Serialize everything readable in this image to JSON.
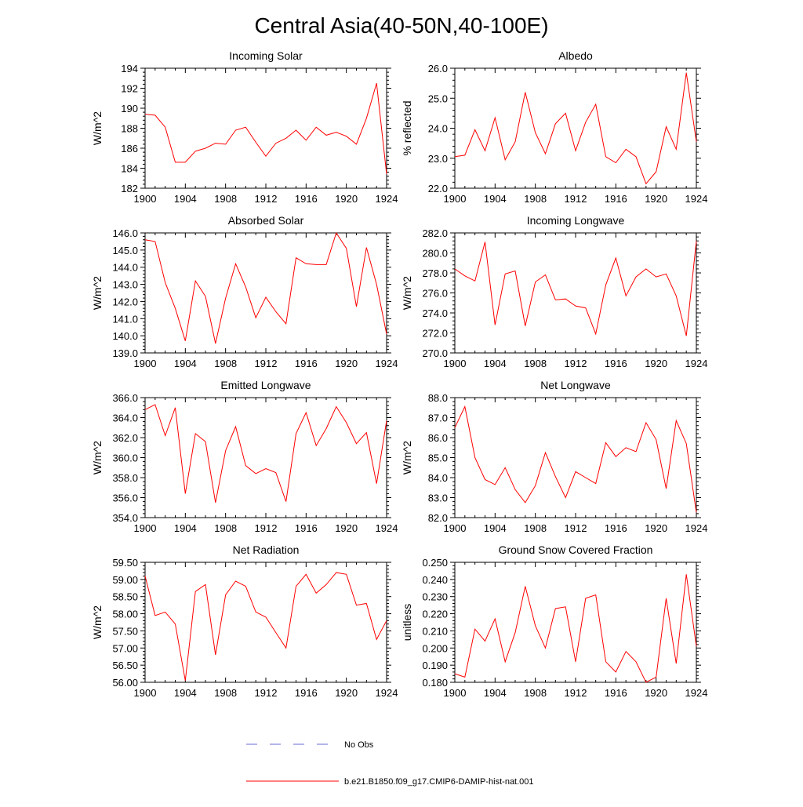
{
  "title": "Central Asia(40-50N,40-100E)",
  "colors": {
    "series": "#ff0000",
    "obs": "#6b6bd6",
    "axis": "#000000"
  },
  "legend": {
    "obs_label": "No Obs",
    "model_label": "b.e21.B1850.f09_g17.CMIP6-DAMIP-hist-nat.001"
  },
  "chart_data": [
    {
      "type": "line",
      "title": "Incoming Solar",
      "ylabel": "W/m^2",
      "xlim": [
        1900,
        1924
      ],
      "ylim": [
        182,
        194
      ],
      "xticks": [
        "1900",
        "1904",
        "1908",
        "1912",
        "1916",
        "1920",
        "1924"
      ],
      "yticks": [
        "182",
        "184",
        "186",
        "188",
        "190",
        "192",
        "194"
      ],
      "series": [
        {
          "x": [
            1900,
            1901,
            1902,
            1903,
            1904,
            1905,
            1906,
            1907,
            1908,
            1909,
            1910,
            1911,
            1912,
            1913,
            1914,
            1915,
            1916,
            1917,
            1918,
            1919,
            1920,
            1921,
            1922,
            1923,
            1924
          ],
          "values": [
            189.4,
            189.3,
            188.1,
            184.6,
            184.6,
            185.7,
            186.0,
            186.5,
            186.4,
            187.8,
            188.1,
            186.6,
            185.2,
            186.5,
            187.0,
            187.8,
            186.8,
            188.1,
            187.3,
            187.6,
            187.2,
            186.4,
            189.0,
            192.5,
            183.4
          ]
        }
      ]
    },
    {
      "type": "line",
      "title": "Albedo",
      "ylabel": "% reflected",
      "xlim": [
        1900,
        1924
      ],
      "ylim": [
        22.0,
        26.0
      ],
      "xticks": [
        "1900",
        "1904",
        "1908",
        "1912",
        "1916",
        "1920",
        "1924"
      ],
      "yticks": [
        "22.0",
        "23.0",
        "24.0",
        "25.0",
        "26.0"
      ],
      "series": [
        {
          "x": [
            1900,
            1901,
            1902,
            1903,
            1904,
            1905,
            1906,
            1907,
            1908,
            1909,
            1910,
            1911,
            1912,
            1913,
            1914,
            1915,
            1916,
            1917,
            1918,
            1919,
            1920,
            1921,
            1922,
            1923,
            1924
          ],
          "values": [
            23.05,
            23.1,
            23.95,
            23.25,
            24.35,
            22.95,
            23.55,
            25.2,
            23.85,
            23.15,
            24.15,
            24.5,
            23.25,
            24.2,
            24.8,
            23.05,
            22.85,
            23.3,
            23.05,
            22.15,
            22.55,
            24.05,
            23.3,
            25.85,
            23.55
          ]
        }
      ]
    },
    {
      "type": "line",
      "title": "Absorbed Solar",
      "ylabel": "W/m^2",
      "xlim": [
        1900,
        1924
      ],
      "ylim": [
        139.0,
        146.0
      ],
      "xticks": [
        "1900",
        "1904",
        "1908",
        "1912",
        "1916",
        "1920",
        "1924"
      ],
      "yticks": [
        "139.0",
        "140.0",
        "141.0",
        "142.0",
        "143.0",
        "144.0",
        "145.0",
        "146.0"
      ],
      "series": [
        {
          "x": [
            1900,
            1901,
            1902,
            1903,
            1904,
            1905,
            1906,
            1907,
            1908,
            1909,
            1910,
            1911,
            1912,
            1913,
            1914,
            1915,
            1916,
            1917,
            1918,
            1919,
            1920,
            1921,
            1922,
            1923,
            1924
          ],
          "values": [
            145.6,
            145.5,
            143.1,
            141.6,
            139.7,
            143.2,
            142.3,
            139.55,
            142.2,
            144.2,
            142.85,
            141.05,
            142.25,
            141.4,
            140.7,
            144.55,
            144.2,
            144.15,
            144.15,
            146.0,
            145.1,
            141.7,
            145.15,
            143.0,
            140.1
          ]
        }
      ]
    },
    {
      "type": "line",
      "title": "Incoming Longwave",
      "ylabel": "W/m^2",
      "xlim": [
        1900,
        1924
      ],
      "ylim": [
        270.0,
        282.0
      ],
      "xticks": [
        "1900",
        "1904",
        "1908",
        "1912",
        "1916",
        "1920",
        "1924"
      ],
      "yticks": [
        "270.0",
        "272.0",
        "274.0",
        "276.0",
        "278.0",
        "280.0",
        "282.0"
      ],
      "series": [
        {
          "x": [
            1900,
            1901,
            1902,
            1903,
            1904,
            1905,
            1906,
            1907,
            1908,
            1909,
            1910,
            1911,
            1912,
            1913,
            1914,
            1915,
            1916,
            1917,
            1918,
            1919,
            1920,
            1921,
            1922,
            1923,
            1924
          ],
          "values": [
            278.4,
            277.7,
            277.2,
            281.1,
            272.8,
            277.9,
            278.2,
            272.7,
            277.1,
            277.8,
            275.3,
            275.4,
            274.7,
            274.5,
            271.9,
            276.8,
            279.5,
            275.7,
            277.6,
            278.4,
            277.6,
            277.9,
            275.7,
            271.7,
            281.2
          ]
        }
      ]
    },
    {
      "type": "line",
      "title": "Emitted Longwave",
      "ylabel": "W/m^2",
      "xlim": [
        1900,
        1924
      ],
      "ylim": [
        354.0,
        366.0
      ],
      "xticks": [
        "1900",
        "1904",
        "1908",
        "1912",
        "1916",
        "1920",
        "1924"
      ],
      "yticks": [
        "354.0",
        "356.0",
        "358.0",
        "360.0",
        "362.0",
        "364.0",
        "366.0"
      ],
      "series": [
        {
          "x": [
            1900,
            1901,
            1902,
            1903,
            1904,
            1905,
            1906,
            1907,
            1908,
            1909,
            1910,
            1911,
            1912,
            1913,
            1914,
            1915,
            1916,
            1917,
            1918,
            1919,
            1920,
            1921,
            1922,
            1923,
            1924
          ],
          "values": [
            364.8,
            365.3,
            362.2,
            365.0,
            356.4,
            362.4,
            361.6,
            355.5,
            360.7,
            363.1,
            359.2,
            358.4,
            358.9,
            358.5,
            355.6,
            362.4,
            364.5,
            361.2,
            362.9,
            365.1,
            363.5,
            361.4,
            362.5,
            357.4,
            363.7
          ]
        }
      ]
    },
    {
      "type": "line",
      "title": "Net Longwave",
      "ylabel": "W/m^2",
      "xlim": [
        1900,
        1924
      ],
      "ylim": [
        82.0,
        88.0
      ],
      "xticks": [
        "1900",
        "1904",
        "1908",
        "1912",
        "1916",
        "1920",
        "1924"
      ],
      "yticks": [
        "82.0",
        "83.0",
        "84.0",
        "85.0",
        "86.0",
        "87.0",
        "88.0"
      ],
      "series": [
        {
          "x": [
            1900,
            1901,
            1902,
            1903,
            1904,
            1905,
            1906,
            1907,
            1908,
            1909,
            1910,
            1911,
            1912,
            1913,
            1914,
            1915,
            1916,
            1917,
            1918,
            1919,
            1920,
            1921,
            1922,
            1923,
            1924
          ],
          "values": [
            86.5,
            87.55,
            85.0,
            83.9,
            83.65,
            84.5,
            83.4,
            82.75,
            83.6,
            85.25,
            84.05,
            83.0,
            84.3,
            84.0,
            83.7,
            85.75,
            85.05,
            85.5,
            85.3,
            86.75,
            85.9,
            83.45,
            86.85,
            85.7,
            82.25
          ]
        }
      ]
    },
    {
      "type": "line",
      "title": "Net Radiation",
      "ylabel": "W/m^2",
      "xlim": [
        1900,
        1924
      ],
      "ylim": [
        56.0,
        59.5
      ],
      "xticks": [
        "1900",
        "1904",
        "1908",
        "1912",
        "1916",
        "1920",
        "1924"
      ],
      "yticks": [
        "56.00",
        "56.50",
        "57.00",
        "57.50",
        "58.00",
        "58.50",
        "59.00",
        "59.50"
      ],
      "series": [
        {
          "x": [
            1900,
            1901,
            1902,
            1903,
            1904,
            1905,
            1906,
            1907,
            1908,
            1909,
            1910,
            1911,
            1912,
            1913,
            1914,
            1915,
            1916,
            1917,
            1918,
            1919,
            1920,
            1921,
            1922,
            1923,
            1924
          ],
          "values": [
            59.1,
            57.95,
            58.05,
            57.7,
            56.05,
            58.65,
            58.85,
            56.8,
            58.55,
            58.95,
            58.8,
            58.05,
            57.9,
            57.45,
            57.0,
            58.8,
            59.15,
            58.6,
            58.85,
            59.2,
            59.15,
            58.25,
            58.3,
            57.25,
            57.8
          ]
        }
      ]
    },
    {
      "type": "line",
      "title": "Ground Snow Covered Fraction",
      "ylabel": "unitless",
      "xlim": [
        1900,
        1924
      ],
      "ylim": [
        0.18,
        0.25
      ],
      "xticks": [
        "1900",
        "1904",
        "1908",
        "1912",
        "1916",
        "1920",
        "1924"
      ],
      "yticks": [
        "0.180",
        "0.190",
        "0.200",
        "0.210",
        "0.220",
        "0.230",
        "0.240",
        "0.250"
      ],
      "series": [
        {
          "x": [
            1900,
            1901,
            1902,
            1903,
            1904,
            1905,
            1906,
            1907,
            1908,
            1909,
            1910,
            1911,
            1912,
            1913,
            1914,
            1915,
            1916,
            1917,
            1918,
            1919,
            1920,
            1921,
            1922,
            1923,
            1924
          ],
          "values": [
            0.185,
            0.183,
            0.211,
            0.204,
            0.217,
            0.192,
            0.209,
            0.236,
            0.213,
            0.2,
            0.223,
            0.224,
            0.192,
            0.229,
            0.231,
            0.192,
            0.186,
            0.198,
            0.192,
            0.18,
            0.183,
            0.229,
            0.191,
            0.243,
            0.201
          ]
        }
      ]
    }
  ]
}
